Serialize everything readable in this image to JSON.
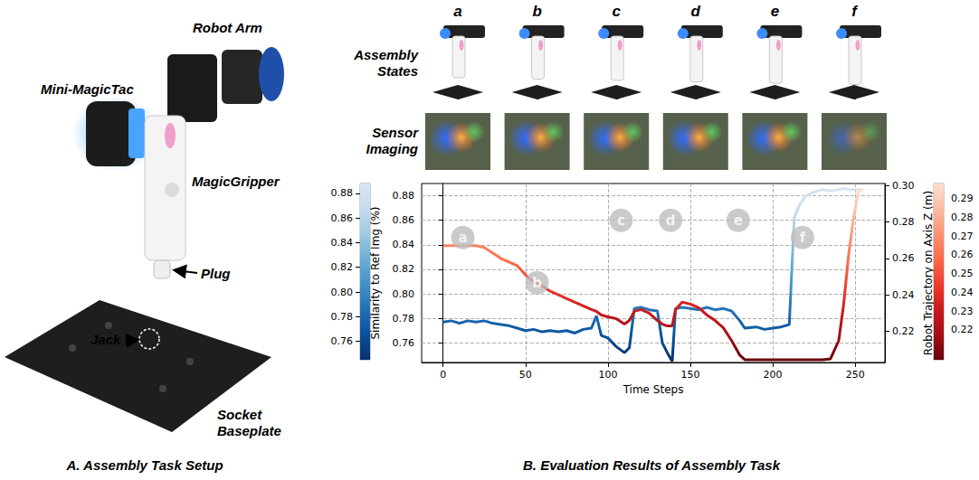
{
  "figure": {
    "panel_a": {
      "title": "A. Assembly Task Setup",
      "labels": {
        "robot_arm": "Robot Arm",
        "sensor": "Mini-MagicTac",
        "gripper": "MagicGripper",
        "plug": "Plug",
        "jack": "Jack",
        "baseplate": "Socket Baseplate"
      }
    },
    "panel_b": {
      "title": "B. Evaluation Results of Assembly Task",
      "row_titles": [
        "Assembly States",
        "Sensor Imaging"
      ],
      "state_letters": [
        "a",
        "b",
        "c",
        "d",
        "e",
        "f"
      ]
    }
  },
  "chart_data": {
    "type": "line",
    "x_label": "Time Steps",
    "y_label": "Similarity to Ref Img (%)",
    "y2_label": "Robot Trajectory on Axis Z (m)",
    "x": [
      0,
      5,
      10,
      15,
      20,
      25,
      30,
      35,
      40,
      45,
      50,
      55,
      60,
      65,
      70,
      75,
      80,
      85,
      90,
      93,
      96,
      100,
      105,
      110,
      113,
      116,
      120,
      125,
      130,
      133,
      136,
      139,
      141,
      145,
      150,
      155,
      160,
      165,
      170,
      175,
      180,
      183,
      190,
      195,
      200,
      205,
      210,
      213,
      216,
      220,
      225,
      230,
      235,
      240,
      243,
      246,
      249,
      252,
      255
    ],
    "xlim": [
      -13,
      268
    ],
    "xticks": [
      0,
      50,
      100,
      150,
      200,
      250
    ],
    "ylim": [
      0.744,
      0.89
    ],
    "yticks": [
      0.76,
      0.78,
      {
        "value": 0.8,
        "label": "0.80"
      },
      0.82,
      0.84,
      0.86,
      0.88
    ],
    "y2lim": [
      0.203,
      0.301
    ],
    "y2ticks": [
      0.22,
      0.24,
      0.26,
      0.28,
      {
        "value": 0.3,
        "label": "0.30"
      }
    ],
    "grid": true,
    "series": [
      {
        "axis": "y",
        "color": "Blues",
        "values": [
          0.777,
          0.778,
          0.776,
          0.778,
          0.777,
          0.778,
          0.776,
          0.775,
          0.774,
          0.772,
          0.77,
          0.771,
          0.769,
          0.77,
          0.769,
          0.77,
          0.768,
          0.771,
          0.772,
          0.782,
          0.766,
          0.764,
          0.757,
          0.752,
          0.756,
          0.788,
          0.789,
          0.787,
          0.786,
          0.76,
          0.752,
          0.745,
          0.788,
          0.789,
          0.788,
          0.787,
          0.789,
          0.787,
          0.788,
          0.786,
          0.778,
          0.772,
          0.773,
          0.771,
          0.772,
          0.773,
          0.775,
          0.862,
          0.872,
          0.88,
          0.883,
          0.885,
          0.884,
          0.885,
          0.886,
          0.885,
          0.885,
          0.885,
          0.885
        ],
        "color_range": [
          0.745,
          0.888
        ],
        "color_ticks": [
          0.76,
          0.78,
          {
            "value": 0.8,
            "label": "0.80"
          },
          0.82,
          0.84,
          0.86,
          0.88
        ]
      },
      {
        "axis": "y2",
        "color": "Reds",
        "values": [
          0.267,
          0.267,
          0.267,
          0.267,
          0.267,
          0.266,
          0.263,
          0.26,
          0.258,
          0.256,
          0.251,
          0.247,
          0.245,
          0.242,
          0.24,
          0.238,
          0.236,
          0.234,
          0.232,
          0.231,
          0.229,
          0.228,
          0.227,
          0.224,
          0.226,
          0.231,
          0.232,
          0.23,
          0.226,
          0.224,
          0.223,
          0.223,
          0.232,
          0.236,
          0.235,
          0.233,
          0.229,
          0.226,
          0.222,
          0.215,
          0.207,
          0.2045,
          0.2045,
          0.2045,
          0.2045,
          0.2045,
          0.2045,
          0.2045,
          0.2045,
          0.2045,
          0.2045,
          0.2045,
          0.205,
          0.215,
          0.235,
          0.262,
          0.282,
          0.297,
          0.298
        ],
        "color_range": [
          0.204,
          0.298
        ],
        "color_ticks": [
          0.22,
          0.23,
          0.24,
          0.25,
          0.26,
          0.27,
          0.28,
          0.29
        ]
      }
    ],
    "annotations": [
      {
        "text": "a",
        "x": 12,
        "y": 0.846
      },
      {
        "text": "b",
        "x": 57,
        "y": 0.809
      },
      {
        "text": "c",
        "x": 108,
        "y": 0.86
      },
      {
        "text": "d",
        "x": 138,
        "y": 0.86
      },
      {
        "text": "e",
        "x": 179,
        "y": 0.86
      },
      {
        "text": "f",
        "x": 218,
        "y": 0.846
      }
    ]
  }
}
